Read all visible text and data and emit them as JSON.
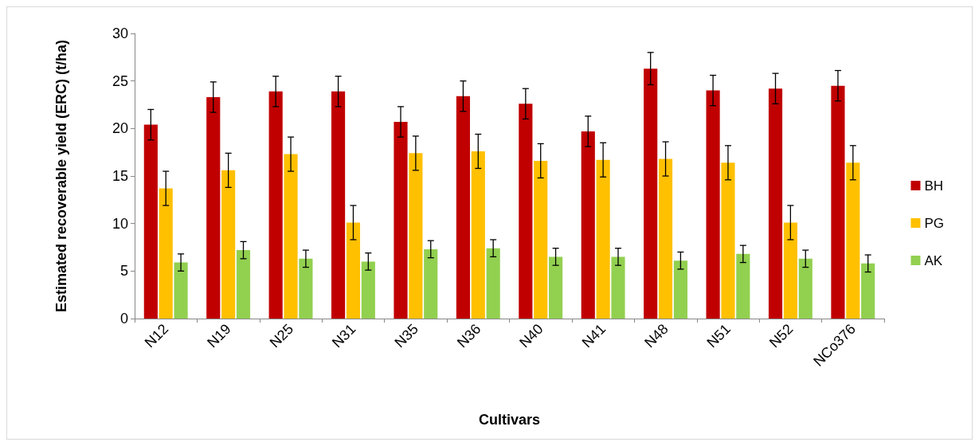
{
  "chart_data": {
    "type": "bar",
    "xlabel": "Cultivars",
    "ylabel": "Estimated recoverable yield (ERC) (t/ha)",
    "categories": [
      "N12",
      "N19",
      "N25",
      "N31",
      "N35",
      "N36",
      "N40",
      "N41",
      "N48",
      "N51",
      "N52",
      "NCo376"
    ],
    "series": [
      {
        "name": "BH",
        "color": "#c00000",
        "values": [
          20.4,
          23.3,
          23.9,
          23.9,
          20.7,
          23.4,
          22.6,
          19.7,
          26.3,
          24.0,
          24.2,
          24.5
        ],
        "errors": [
          1.6,
          1.6,
          1.6,
          1.6,
          1.6,
          1.6,
          1.6,
          1.6,
          1.7,
          1.6,
          1.6,
          1.6
        ]
      },
      {
        "name": "PG",
        "color": "#ffc000",
        "values": [
          13.7,
          15.6,
          17.3,
          10.1,
          17.4,
          17.6,
          16.6,
          16.7,
          16.8,
          16.4,
          10.1,
          16.4
        ],
        "errors": [
          1.8,
          1.8,
          1.8,
          1.8,
          1.8,
          1.8,
          1.8,
          1.8,
          1.8,
          1.8,
          1.8,
          1.8
        ]
      },
      {
        "name": "AK",
        "color": "#92d050",
        "values": [
          5.9,
          7.2,
          6.3,
          6.0,
          7.3,
          7.4,
          6.5,
          6.5,
          6.1,
          6.8,
          6.3,
          5.8
        ],
        "errors": [
          0.9,
          0.9,
          0.9,
          0.9,
          0.9,
          0.9,
          0.9,
          0.9,
          0.9,
          0.9,
          0.9,
          0.9
        ]
      }
    ],
    "ylim": [
      0,
      30
    ],
    "yticks": [
      0,
      5,
      10,
      15,
      20,
      25,
      30
    ],
    "grid": false,
    "legend": "right"
  }
}
